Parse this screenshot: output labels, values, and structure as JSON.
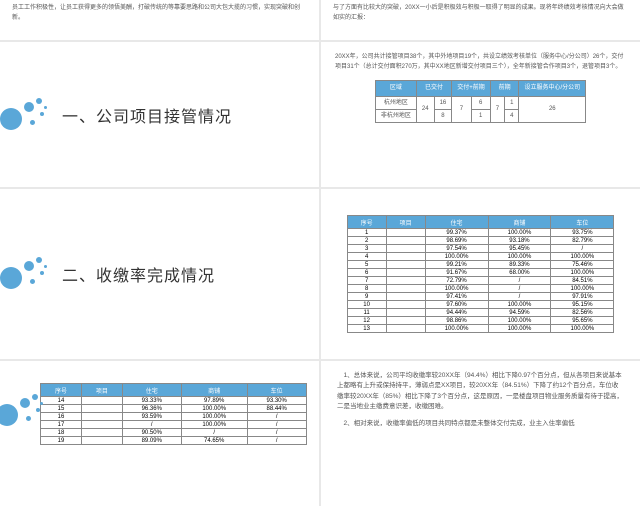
{
  "slide1_text": "员工工作积极性，让员工获得更多的领悟美酬，打破传统的等靠要思路和公司大包大揽的习惯，实现突破和创新。",
  "slide2_text": "与了方面有比较大的突破，20XX一小后是积极效与积极一取得了明显的成果。现将年终绩效考核情况向大会做如实的汇报：",
  "heading1": "一、公司项目接管情况",
  "heading2": "二、收缴率完成情况",
  "s4_text": "20XX年，公司共计接管项目38个，其中外地项目19个，共设立绩效考核单位（服务中心/分公司）26个，交付项目31个（总计交付面积270万，其中XX地区新增交付项目三个），全年新接管合作项目3个，退管项目3个。",
  "t1": {
    "headers": [
      "区域",
      "已交付",
      "交付+前期",
      "前期",
      "设立服务中心/分公司"
    ],
    "rows": [
      [
        "杭州地区",
        "24",
        "16",
        "7",
        "6",
        "7",
        "1",
        "4",
        "26"
      ],
      [
        "非杭州地区",
        "8"
      ]
    ]
  },
  "t2": {
    "headers": [
      "序号",
      "项目",
      "住宅",
      "商铺",
      "车位"
    ],
    "rows": [
      [
        "1",
        "",
        "99.37%",
        "100.00%",
        "93.75%"
      ],
      [
        "2",
        "",
        "98.69%",
        "93.18%",
        "82.79%"
      ],
      [
        "3",
        "",
        "97.54%",
        "95.45%",
        "/"
      ],
      [
        "4",
        "",
        "100.00%",
        "100.00%",
        "100.00%"
      ],
      [
        "5",
        "",
        "99.21%",
        "89.33%",
        "75.46%"
      ],
      [
        "6",
        "",
        "91.67%",
        "68.00%",
        "100.00%"
      ],
      [
        "7",
        "",
        "72.79%",
        "/",
        "84.51%"
      ],
      [
        "8",
        "",
        "100.00%",
        "/",
        "100.00%"
      ],
      [
        "9",
        "",
        "97.41%",
        "/",
        "97.91%"
      ],
      [
        "10",
        "",
        "97.60%",
        "100.00%",
        "95.15%"
      ],
      [
        "11",
        "",
        "94.44%",
        "94.59%",
        "82.56%"
      ],
      [
        "12",
        "",
        "98.86%",
        "100.00%",
        "95.65%"
      ],
      [
        "13",
        "",
        "100.00%",
        "100.00%",
        "100.00%"
      ]
    ]
  },
  "t3": {
    "headers": [
      "序号",
      "项目",
      "住宅",
      "商铺",
      "车位"
    ],
    "rows": [
      [
        "14",
        "",
        "93.33%",
        "97.89%",
        "93.30%"
      ],
      [
        "15",
        "",
        "96.36%",
        "100.00%",
        "88.44%"
      ],
      [
        "16",
        "",
        "93.59%",
        "100.00%",
        "/"
      ],
      [
        "17",
        "",
        "/",
        "100.00%",
        "/"
      ],
      [
        "18",
        "",
        "90.50%",
        "/",
        "/"
      ],
      [
        "19",
        "",
        "89.09%",
        "74.65%",
        "/"
      ]
    ]
  },
  "s8_p1": "1、总体来说，公司平均收缴率较20XX年（94.4%）相比下降0.97个百分点，但从各项目来说基本上都略有上升或保持持平，薄弱点是XX项目，较20XX年（84.51%）下降了约12个百分点，车位收缴率较20XX年（85%）相比下降了3个百分点，这是原因，一是楼盘项目物业服务质量有待于提高，二是当地业主缴费意识差，收缴困难。",
  "s8_p2": "2、相对来说，收缴率偏低的项目共同特点都是未整体交付完成，业主入住率偏低"
}
